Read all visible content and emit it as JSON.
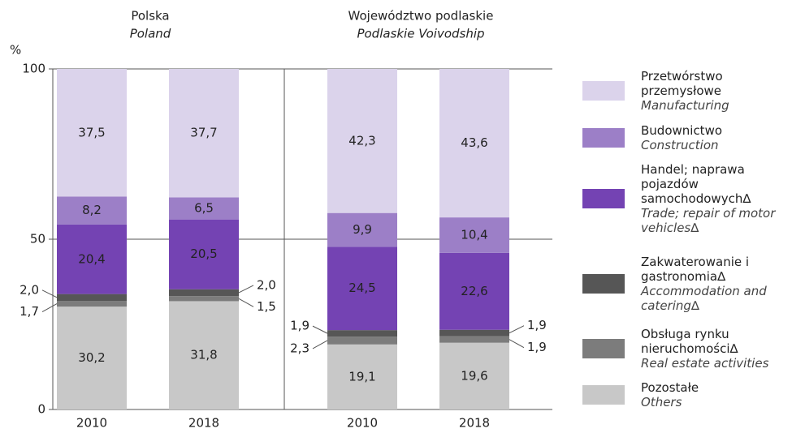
{
  "chart_data": [
    {
      "type": "stacked_bar",
      "title": "Polska",
      "subtitle": "Poland",
      "y_label": "%",
      "categories": [
        "2010",
        "2018"
      ],
      "ylim": [
        0,
        100
      ],
      "yticks": [
        0,
        50,
        100
      ],
      "grid": true,
      "series": [
        {
          "name": "Pozostałe",
          "name_en": "Others",
          "color": "#c8c8c8",
          "values": [
            30.2,
            31.8
          ],
          "value_labels": [
            "30,2",
            "31,8"
          ]
        },
        {
          "name": "Obsługa rynku nieruchomości∆",
          "name_en": "Real estate activities",
          "color": "#7c7c7c",
          "values": [
            1.7,
            1.5
          ],
          "value_labels": [
            "1,7",
            "1,5"
          ]
        },
        {
          "name": "Zakwaterowanie i gastronomia∆",
          "name_en": "Accommodation and catering∆",
          "color": "#565656",
          "values": [
            2.0,
            2.0
          ],
          "value_labels": [
            "2,0",
            "2,0"
          ]
        },
        {
          "name": "Handel; naprawa pojazdów samochodowych∆",
          "name_en": "Trade; repair of motor vehicles∆",
          "color": "#7443b3",
          "values": [
            20.4,
            20.5
          ],
          "value_labels": [
            "20,4",
            "20,5"
          ]
        },
        {
          "name": "Budownictwo",
          "name_en": "Construction",
          "color": "#9c7fc7",
          "values": [
            8.2,
            6.5
          ],
          "value_labels": [
            "8,2",
            "6,5"
          ]
        },
        {
          "name": "Przetwórstwo przemysłowe",
          "name_en": "Manufacturing",
          "color": "#dbd3eb",
          "values": [
            37.5,
            37.7
          ],
          "value_labels": [
            "37,5",
            "37,7"
          ]
        }
      ]
    },
    {
      "type": "stacked_bar",
      "title": "Województwo podlaskie",
      "subtitle": "Podlaskie Voivodship",
      "categories": [
        "2010",
        "2018"
      ],
      "ylim": [
        0,
        100
      ],
      "series": [
        {
          "color": "#c8c8c8",
          "values": [
            19.1,
            19.6
          ],
          "value_labels": [
            "19,1",
            "19,6"
          ]
        },
        {
          "color": "#7c7c7c",
          "values": [
            2.3,
            1.9
          ],
          "value_labels": [
            "2,3",
            "1,9"
          ]
        },
        {
          "color": "#565656",
          "values": [
            1.9,
            1.9
          ],
          "value_labels": [
            "1,9",
            "1,9"
          ]
        },
        {
          "color": "#7443b3",
          "values": [
            24.5,
            22.6
          ],
          "value_labels": [
            "24,5",
            "22,6"
          ]
        },
        {
          "color": "#9c7fc7",
          "values": [
            9.9,
            10.4
          ],
          "value_labels": [
            "9,9",
            "10,4"
          ]
        },
        {
          "color": "#dbd3eb",
          "values": [
            42.3,
            43.6
          ],
          "value_labels": [
            "42,3",
            "43,6"
          ]
        }
      ]
    }
  ]
}
